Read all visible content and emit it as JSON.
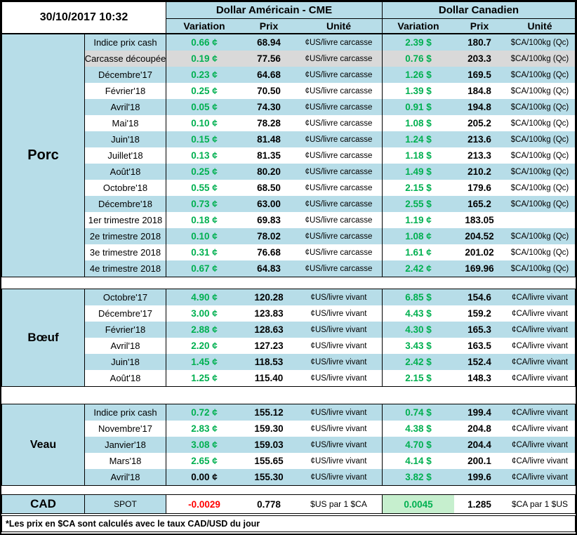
{
  "title_datetime": "30/10/2017 10:32",
  "header": {
    "us_group": "Dollar Américain - CME",
    "ca_group": "Dollar Canadien",
    "variation": "Variation",
    "prix": "Prix",
    "unite": "Unité"
  },
  "colors": {
    "band_blue": "#b7dde8",
    "band_gray": "#d9d9d9",
    "positive": "#00b050",
    "negative": "#ff0000",
    "neutral": "#000000",
    "spot_positive_bg": "#c6efce"
  },
  "sections": [
    {
      "name": "Porc",
      "rows": [
        {
          "label": "Indice prix cash",
          "us_var": "0.66 ¢",
          "us_prix": "68.94",
          "us_unit": "¢US/livre carcasse",
          "ca_var": "2.39 $",
          "ca_prix": "180.7",
          "ca_unit": "$CA/100kg (Qc)"
        },
        {
          "label": "Carcasse découpée",
          "shade": "gray",
          "us_var": "0.19 ¢",
          "us_prix": "77.56",
          "us_unit": "¢US/livre carcasse",
          "ca_var": "0.76 $",
          "ca_prix": "203.3",
          "ca_unit": "$CA/100kg (Qc)"
        },
        {
          "label": "Décembre'17",
          "us_var": "0.23 ¢",
          "us_prix": "64.68",
          "us_unit": "¢US/livre carcasse",
          "ca_var": "1.26 $",
          "ca_prix": "169.5",
          "ca_unit": "$CA/100kg (Qc)"
        },
        {
          "label": "Février'18",
          "us_var": "0.25 ¢",
          "us_prix": "70.50",
          "us_unit": "¢US/livre carcasse",
          "ca_var": "1.39 $",
          "ca_prix": "184.8",
          "ca_unit": "$CA/100kg (Qc)"
        },
        {
          "label": "Avril'18",
          "us_var": "0.05 ¢",
          "us_prix": "74.30",
          "us_unit": "¢US/livre carcasse",
          "ca_var": "0.91 $",
          "ca_prix": "194.8",
          "ca_unit": "$CA/100kg (Qc)"
        },
        {
          "label": "Mai'18",
          "us_var": "0.10 ¢",
          "us_prix": "78.28",
          "us_unit": "¢US/livre carcasse",
          "ca_var": "1.08 $",
          "ca_prix": "205.2",
          "ca_unit": "$CA/100kg (Qc)"
        },
        {
          "label": "Juin'18",
          "us_var": "0.15 ¢",
          "us_prix": "81.48",
          "us_unit": "¢US/livre carcasse",
          "ca_var": "1.24 $",
          "ca_prix": "213.6",
          "ca_unit": "$CA/100kg (Qc)"
        },
        {
          "label": "Juillet'18",
          "us_var": "0.13 ¢",
          "us_prix": "81.35",
          "us_unit": "¢US/livre carcasse",
          "ca_var": "1.18 $",
          "ca_prix": "213.3",
          "ca_unit": "$CA/100kg (Qc)"
        },
        {
          "label": "Août'18",
          "us_var": "0.25 ¢",
          "us_prix": "80.20",
          "us_unit": "¢US/livre carcasse",
          "ca_var": "1.49 $",
          "ca_prix": "210.2",
          "ca_unit": "$CA/100kg (Qc)"
        },
        {
          "label": "Octobre'18",
          "us_var": "0.55 ¢",
          "us_prix": "68.50",
          "us_unit": "¢US/livre carcasse",
          "ca_var": "2.15 $",
          "ca_prix": "179.6",
          "ca_unit": "$CA/100kg (Qc)"
        },
        {
          "label": "Décembre'18",
          "us_var": "0.73 ¢",
          "us_prix": "63.00",
          "us_unit": "¢US/livre carcasse",
          "ca_var": "2.55 $",
          "ca_prix": "165.2",
          "ca_unit": "$CA/100kg (Qc)"
        },
        {
          "label": "1er trimestre 2018",
          "us_var": "0.18 ¢",
          "us_prix": "69.83",
          "us_unit": "¢US/livre carcasse",
          "ca_var": "1.19 ¢",
          "ca_prix": "183.05",
          "ca_unit": ""
        },
        {
          "label": "2e trimestre 2018",
          "us_var": "0.10 ¢",
          "us_prix": "78.02",
          "us_unit": "¢US/livre carcasse",
          "ca_var": "1.08 ¢",
          "ca_prix": "204.52",
          "ca_unit": "$CA/100kg (Qc)"
        },
        {
          "label": "3e trimestre 2018",
          "us_var": "0.31 ¢",
          "us_prix": "76.68",
          "us_unit": "¢US/livre carcasse",
          "ca_var": "1.61 ¢",
          "ca_prix": "201.02",
          "ca_unit": "$CA/100kg (Qc)"
        },
        {
          "label": "4e trimestre 2018",
          "us_var": "0.67 ¢",
          "us_prix": "64.83",
          "us_unit": "¢US/livre carcasse",
          "ca_var": "2.42 ¢",
          "ca_prix": "169.96",
          "ca_unit": "$CA/100kg (Qc)"
        }
      ]
    },
    {
      "name": "Bœuf",
      "rows": [
        {
          "label": "Octobre'17",
          "us_var": "4.90 ¢",
          "us_prix": "120.28",
          "us_unit": "¢US/livre vivant",
          "ca_var": "6.85 $",
          "ca_prix": "154.6",
          "ca_unit": "¢CA/livre vivant"
        },
        {
          "label": "Décembre'17",
          "us_var": "3.00 ¢",
          "us_prix": "123.83",
          "us_unit": "¢US/livre vivant",
          "ca_var": "4.43 $",
          "ca_prix": "159.2",
          "ca_unit": "¢CA/livre vivant"
        },
        {
          "label": "Février'18",
          "us_var": "2.88 ¢",
          "us_prix": "128.63",
          "us_unit": "¢US/livre vivant",
          "ca_var": "4.30 $",
          "ca_prix": "165.3",
          "ca_unit": "¢CA/livre vivant"
        },
        {
          "label": "Avril'18",
          "us_var": "2.20 ¢",
          "us_prix": "127.23",
          "us_unit": "¢US/livre vivant",
          "ca_var": "3.43 $",
          "ca_prix": "163.5",
          "ca_unit": "¢CA/livre vivant"
        },
        {
          "label": "Juin'18",
          "us_var": "1.45 ¢",
          "us_prix": "118.53",
          "us_unit": "¢US/livre vivant",
          "ca_var": "2.42 $",
          "ca_prix": "152.4",
          "ca_unit": "¢CA/livre vivant"
        },
        {
          "label": "Août'18",
          "us_var": "1.25 ¢",
          "us_prix": "115.40",
          "us_unit": "¢US/livre vivant",
          "ca_var": "2.15 $",
          "ca_prix": "148.3",
          "ca_unit": "¢CA/livre vivant"
        }
      ]
    },
    {
      "name": "Veau",
      "rows": [
        {
          "label": "Indice prix cash",
          "us_var": "0.72 ¢",
          "us_prix": "155.12",
          "us_unit": "¢US/livre vivant",
          "ca_var": "0.74 $",
          "ca_prix": "199.4",
          "ca_unit": "¢CA/livre vivant"
        },
        {
          "label": "Novembre'17",
          "us_var": "2.83 ¢",
          "us_prix": "159.30",
          "us_unit": "¢US/livre vivant",
          "ca_var": "4.38 $",
          "ca_prix": "204.8",
          "ca_unit": "¢CA/livre vivant"
        },
        {
          "label": "Janvier'18",
          "us_var": "3.08 ¢",
          "us_prix": "159.03",
          "us_unit": "¢US/livre vivant",
          "ca_var": "4.70 $",
          "ca_prix": "204.4",
          "ca_unit": "¢CA/livre vivant"
        },
        {
          "label": "Mars'18",
          "us_var": "2.65 ¢",
          "us_prix": "155.65",
          "us_unit": "¢US/livre vivant",
          "ca_var": "4.14 $",
          "ca_prix": "200.1",
          "ca_unit": "¢CA/livre vivant"
        },
        {
          "label": "Avril'18",
          "us_var": "0.00 ¢",
          "us_prix": "155.30",
          "us_unit": "¢US/livre vivant",
          "ca_var": "3.82 $",
          "ca_prix": "199.6",
          "ca_unit": "¢CA/livre vivant"
        }
      ]
    }
  ],
  "cad_row": {
    "name": "CAD",
    "label": "SPOT",
    "us_var": "-0.0029",
    "us_prix": "0.778",
    "us_unit": "$US par 1 $CA",
    "ca_var": "0.0045",
    "ca_prix": "1.285",
    "ca_unit": "$CA par 1 $US"
  },
  "footnote": "*Les  prix en $CA sont calculés avec le taux CAD/USD du jour"
}
